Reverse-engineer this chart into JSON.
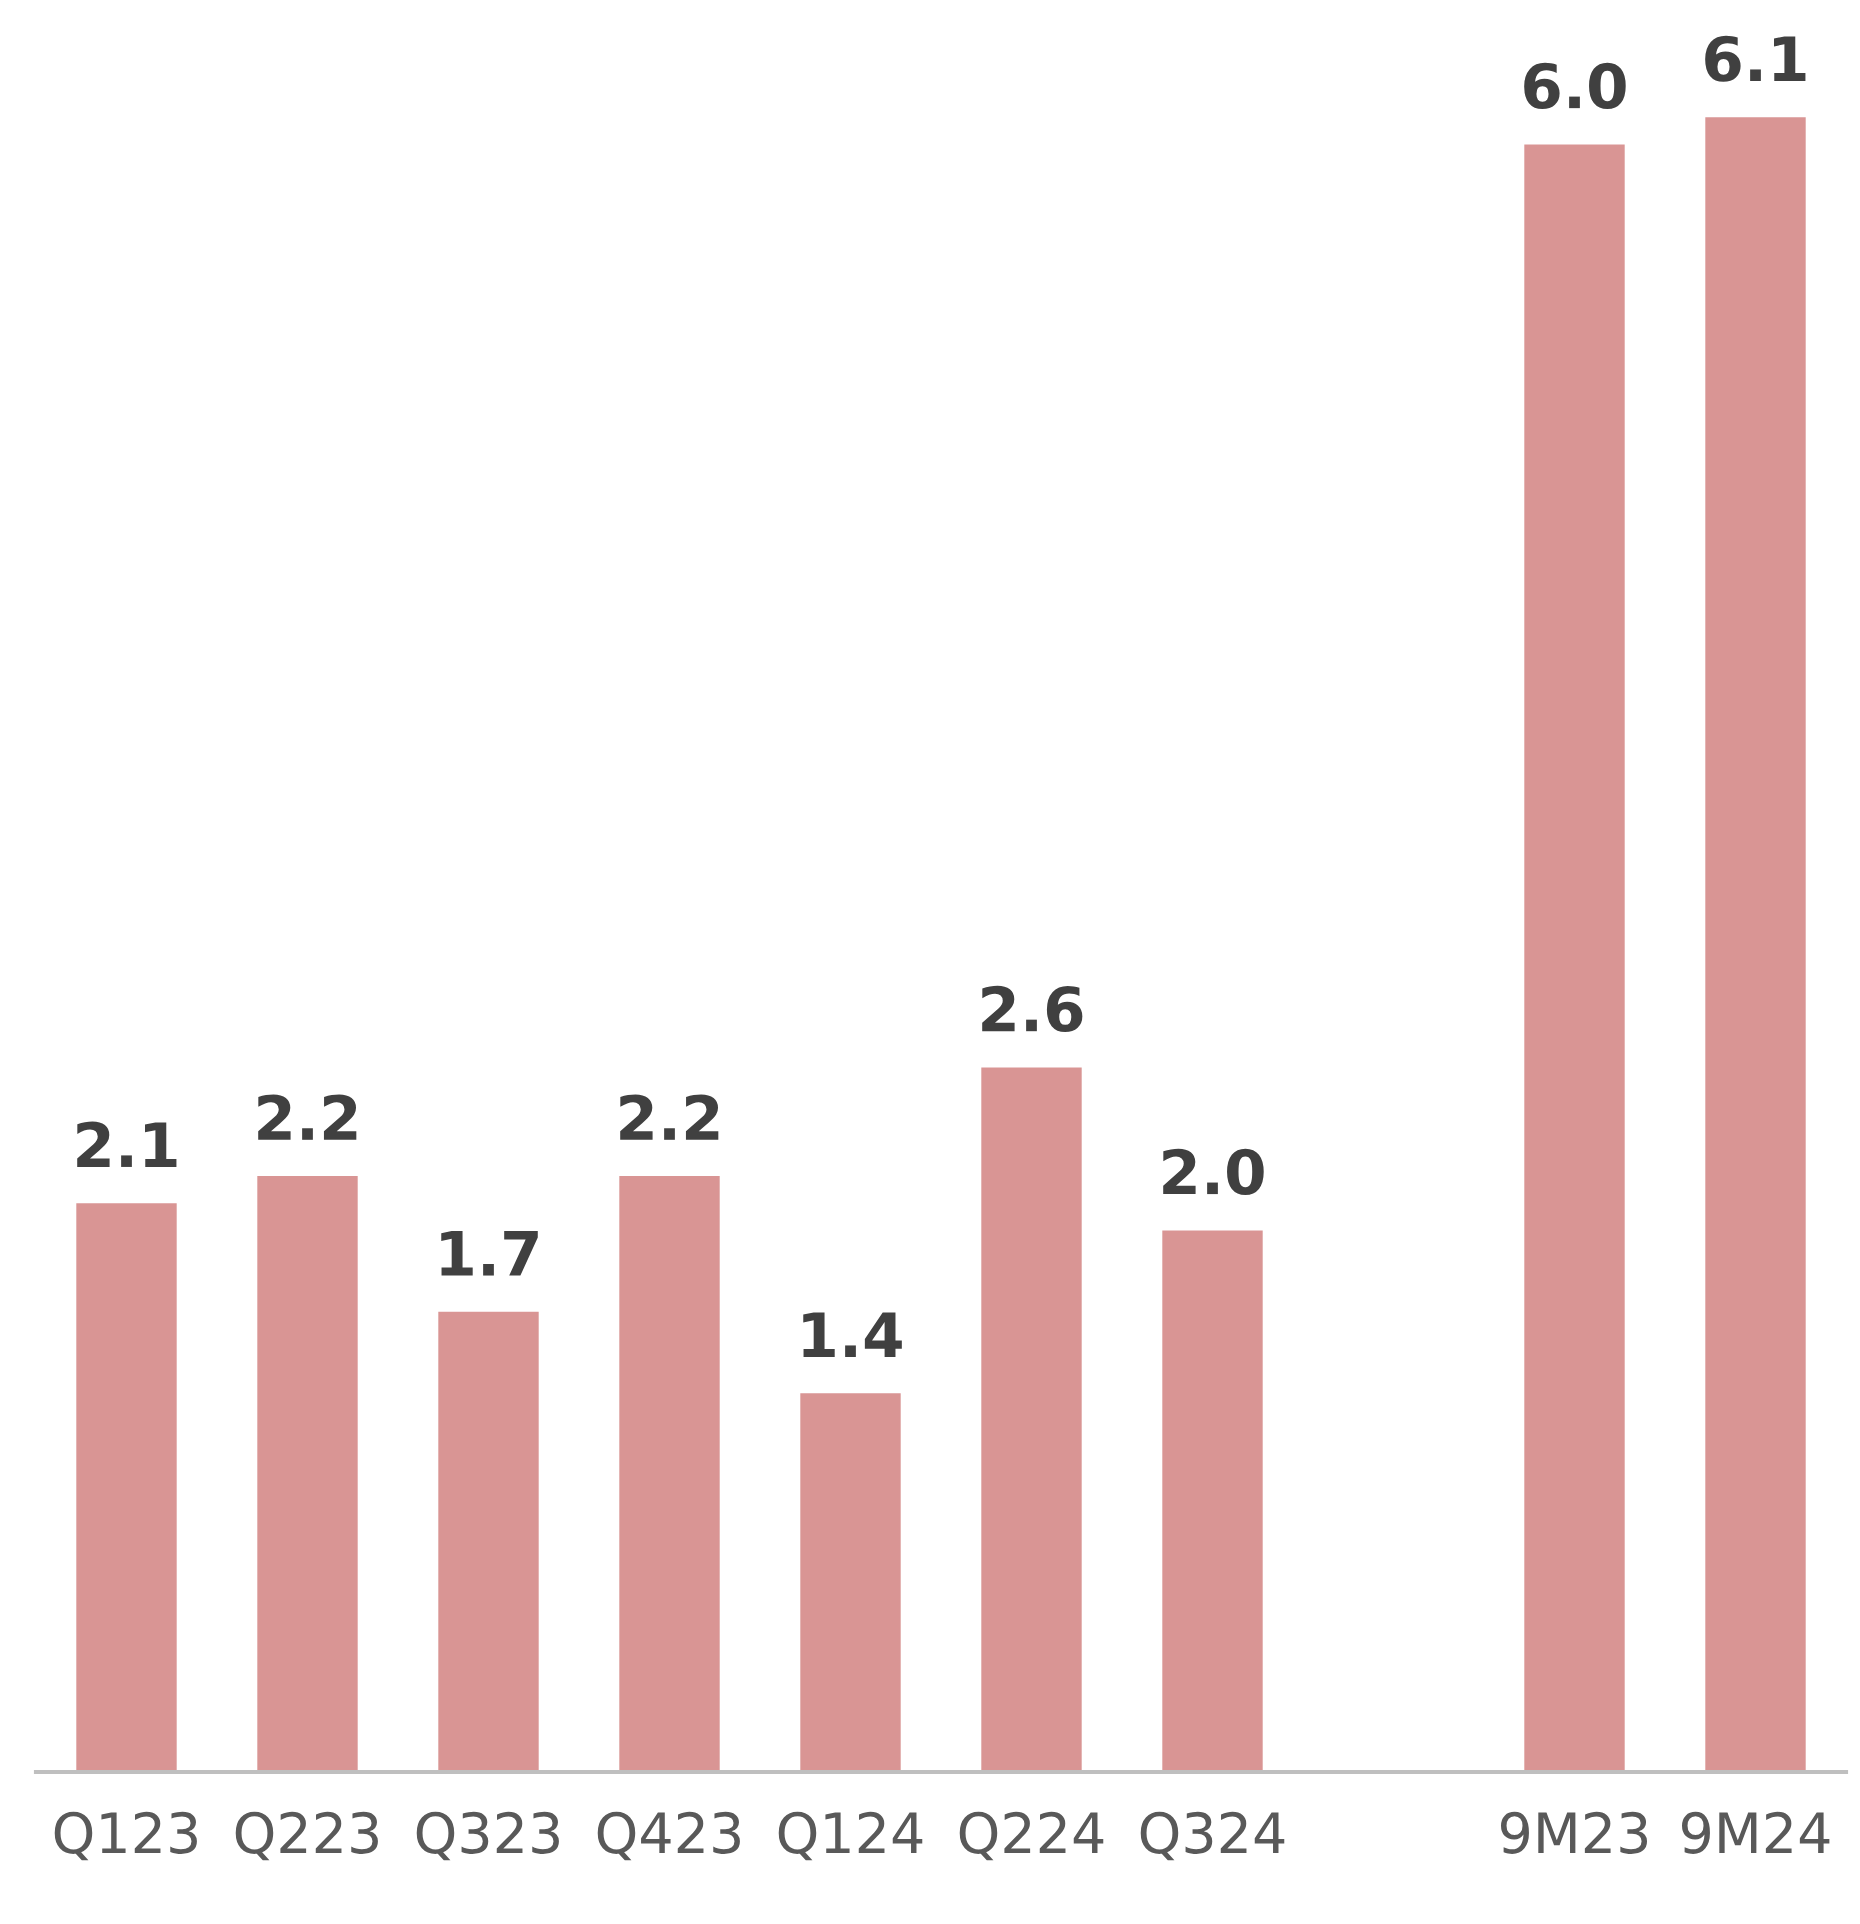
{
  "chart_data": {
    "type": "bar",
    "categories": [
      "Q123",
      "Q223",
      "Q323",
      "Q423",
      "Q124",
      "Q224",
      "Q324",
      null,
      "9M23",
      "9M24"
    ],
    "values": [
      2.1,
      2.2,
      1.7,
      2.2,
      1.4,
      2.6,
      2.0,
      null,
      6.0,
      6.1
    ],
    "color": "#d99594",
    "value_labels": [
      "2.1",
      "2.2",
      "1.7",
      "2.2",
      "1.4",
      "2.6",
      "2.0",
      null,
      "6.0",
      "6.1"
    ],
    "grid": false,
    "legend": false
  }
}
